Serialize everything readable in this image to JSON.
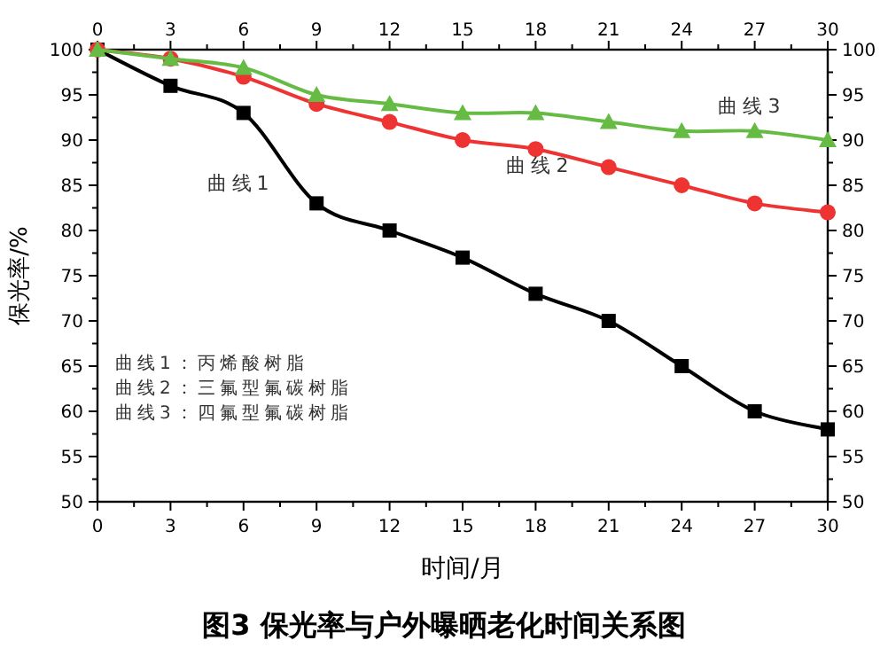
{
  "chart_data": {
    "type": "line",
    "title": "图3 保光率与户外曝晒老化时间关系图",
    "xlabel": "时间/月",
    "ylabel": "保光率/%",
    "x": [
      0,
      3,
      6,
      9,
      12,
      15,
      18,
      21,
      24,
      27,
      30
    ],
    "series": [
      {
        "name": "曲线1",
        "color": "#000000",
        "marker": "square",
        "values": [
          100,
          96,
          93,
          83,
          80,
          77,
          73,
          70,
          65,
          60,
          58
        ]
      },
      {
        "name": "曲线2",
        "color": "#ee3333",
        "marker": "circle",
        "values": [
          100,
          99,
          97,
          94,
          92,
          90,
          89,
          87,
          85,
          83,
          82
        ]
      },
      {
        "name": "曲线3",
        "color": "#66bb44",
        "marker": "triangle",
        "values": [
          100,
          99,
          98,
          95,
          94,
          93,
          93,
          92,
          91,
          91,
          90
        ]
      }
    ],
    "xlim": [
      0,
      30
    ],
    "xticks": [
      0,
      3,
      6,
      9,
      12,
      15,
      18,
      21,
      24,
      27,
      30
    ],
    "x2lim": [
      0,
      30
    ],
    "x2ticks": [
      0,
      3,
      6,
      9,
      12,
      15,
      18,
      21,
      24,
      27,
      30
    ],
    "ylim": [
      50,
      100
    ],
    "yticks": [
      50,
      55,
      60,
      65,
      70,
      75,
      80,
      85,
      90,
      95,
      100
    ],
    "y2lim": [
      50,
      100
    ],
    "y2ticks": [
      50,
      55,
      60,
      65,
      70,
      75,
      80,
      85,
      90,
      95,
      100
    ],
    "annotations": [
      "曲线1：丙烯酸树脂",
      "曲线2：三氟型氟碳树脂",
      "曲线3：四氟型氟碳树脂"
    ],
    "grid": false
  }
}
